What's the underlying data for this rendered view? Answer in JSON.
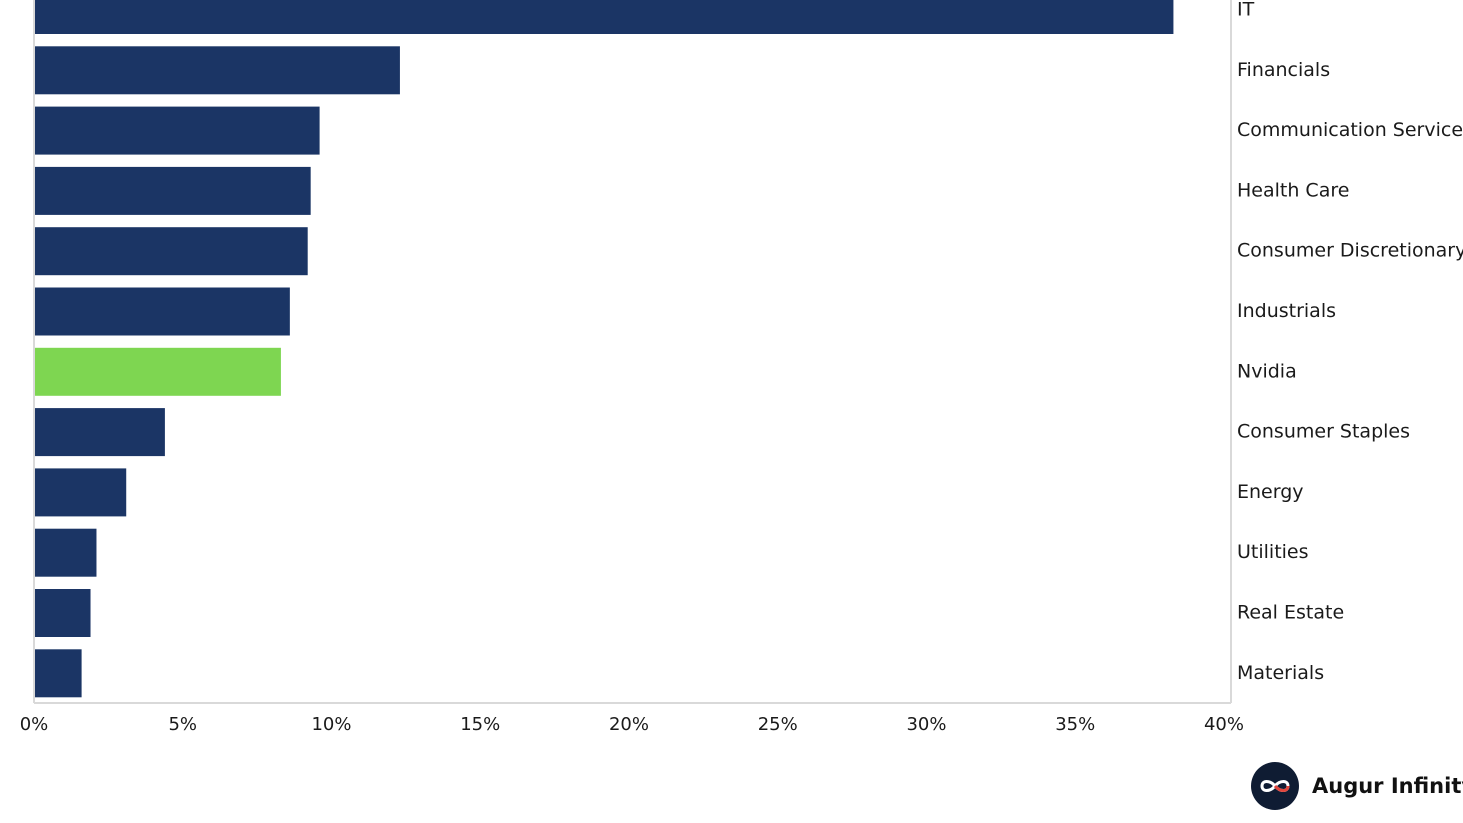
{
  "chart_data": {
    "type": "bar",
    "orientation": "horizontal",
    "categories": [
      "IT",
      "Financials",
      "Communication Services",
      "Health Care",
      "Consumer Discretionary",
      "Industrials",
      "Nvidia",
      "Consumer Staples",
      "Energy",
      "Utilities",
      "Real Estate",
      "Materials"
    ],
    "values": [
      38.3,
      12.3,
      9.6,
      9.3,
      9.2,
      8.6,
      8.3,
      4.4,
      3.1,
      2.1,
      1.9,
      1.6
    ],
    "highlight": "Nvidia",
    "colors": {
      "bar": "#1b3565",
      "highlight": "#7ed651",
      "axis": "#d9d9d9",
      "text": "#1a1a1a"
    },
    "xlim": [
      0,
      40
    ],
    "x_ticks": [
      0,
      5,
      10,
      15,
      20,
      25,
      30,
      35,
      40
    ],
    "x_tick_labels": [
      "0%",
      "5%",
      "10%",
      "15%",
      "20%",
      "25%",
      "30%",
      "35%",
      "40%"
    ],
    "category_label_side": "right",
    "grid": false,
    "legend": "none"
  },
  "brand": {
    "name": "Augur Infinity",
    "logo_icon": "infinity-icon"
  }
}
